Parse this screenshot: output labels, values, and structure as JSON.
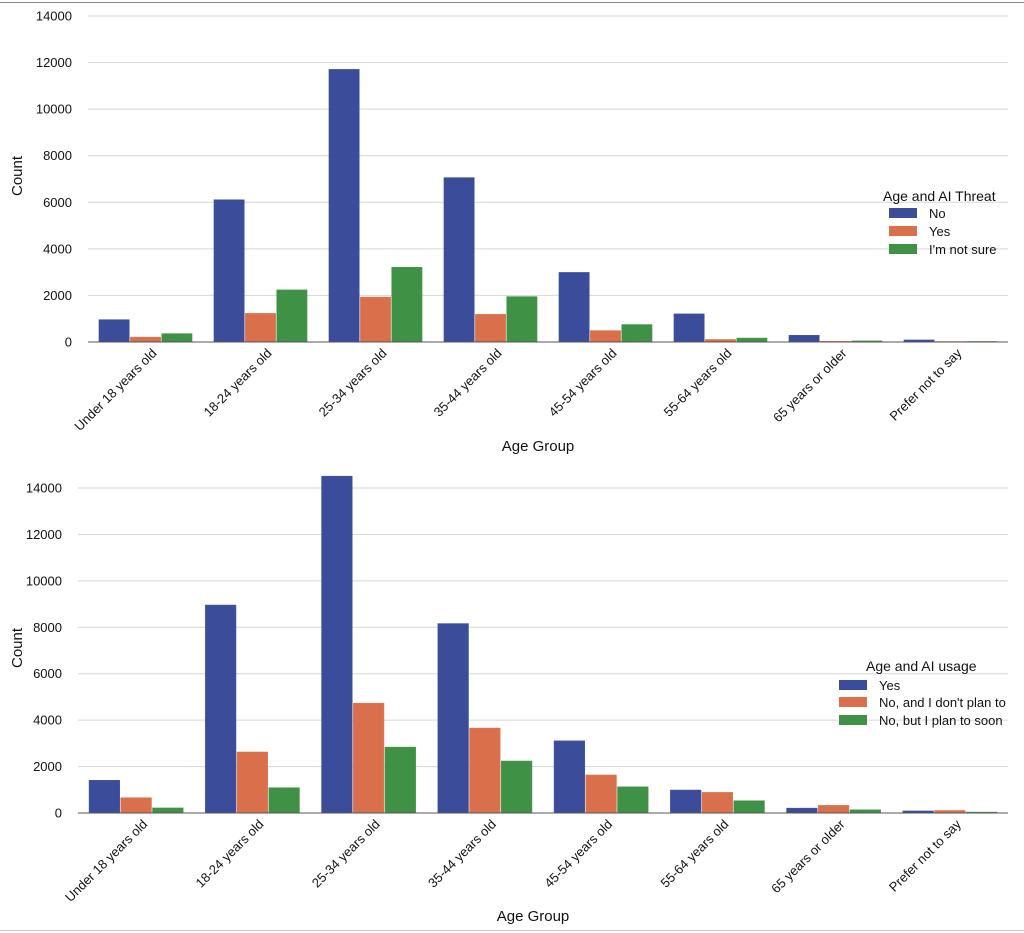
{
  "colors": {
    "series1": "#3a4c9a",
    "series2": "#d9704b",
    "series3": "#3f9146"
  },
  "chart_data": [
    {
      "type": "bar",
      "categories": [
        "Under 18 years old",
        "18-24 years old",
        "25-34 years old",
        "35-44 years old",
        "45-54 years old",
        "55-64 years old",
        "65 years or older",
        "Prefer not to say"
      ],
      "series": [
        {
          "name": "No",
          "values": [
            950,
            6100,
            11700,
            7050,
            2980,
            1200,
            280,
            80
          ]
        },
        {
          "name": "Yes",
          "values": [
            200,
            1220,
            1920,
            1180,
            480,
            100,
            20,
            10
          ]
        },
        {
          "name": "I'm not sure",
          "values": [
            350,
            2230,
            3200,
            1940,
            740,
            160,
            40,
            15
          ]
        }
      ],
      "xlabel": "Age Group",
      "ylabel": "Count",
      "ylim": [
        0,
        14000
      ],
      "yticks": [
        0,
        2000,
        4000,
        6000,
        8000,
        10000,
        12000,
        14000
      ],
      "legend_title": "Age and AI Threat",
      "legend_placement": "center-right",
      "grid": "horizontal"
    },
    {
      "type": "bar",
      "categories": [
        "Under 18 years old",
        "18-24 years old",
        "25-34 years old",
        "35-44 years old",
        "45-54 years old",
        "55-64 years old",
        "65 years or older",
        "Prefer not to say"
      ],
      "series": [
        {
          "name": "Yes",
          "values": [
            1400,
            8950,
            14500,
            8150,
            3100,
            980,
            200,
            80
          ]
        },
        {
          "name": "No, and I don't plan to",
          "values": [
            650,
            2620,
            4720,
            3650,
            1630,
            880,
            320,
            100
          ]
        },
        {
          "name": "No, but I plan to soon",
          "values": [
            210,
            1080,
            2830,
            2230,
            1120,
            520,
            130,
            30
          ]
        }
      ],
      "xlabel": "Age Group",
      "ylabel": "Count",
      "ylim": [
        0,
        15000
      ],
      "yticks": [
        0,
        2000,
        4000,
        6000,
        8000,
        10000,
        12000,
        14000
      ],
      "legend_title": "Age and AI usage",
      "legend_placement": "center-right",
      "grid": "horizontal"
    }
  ]
}
